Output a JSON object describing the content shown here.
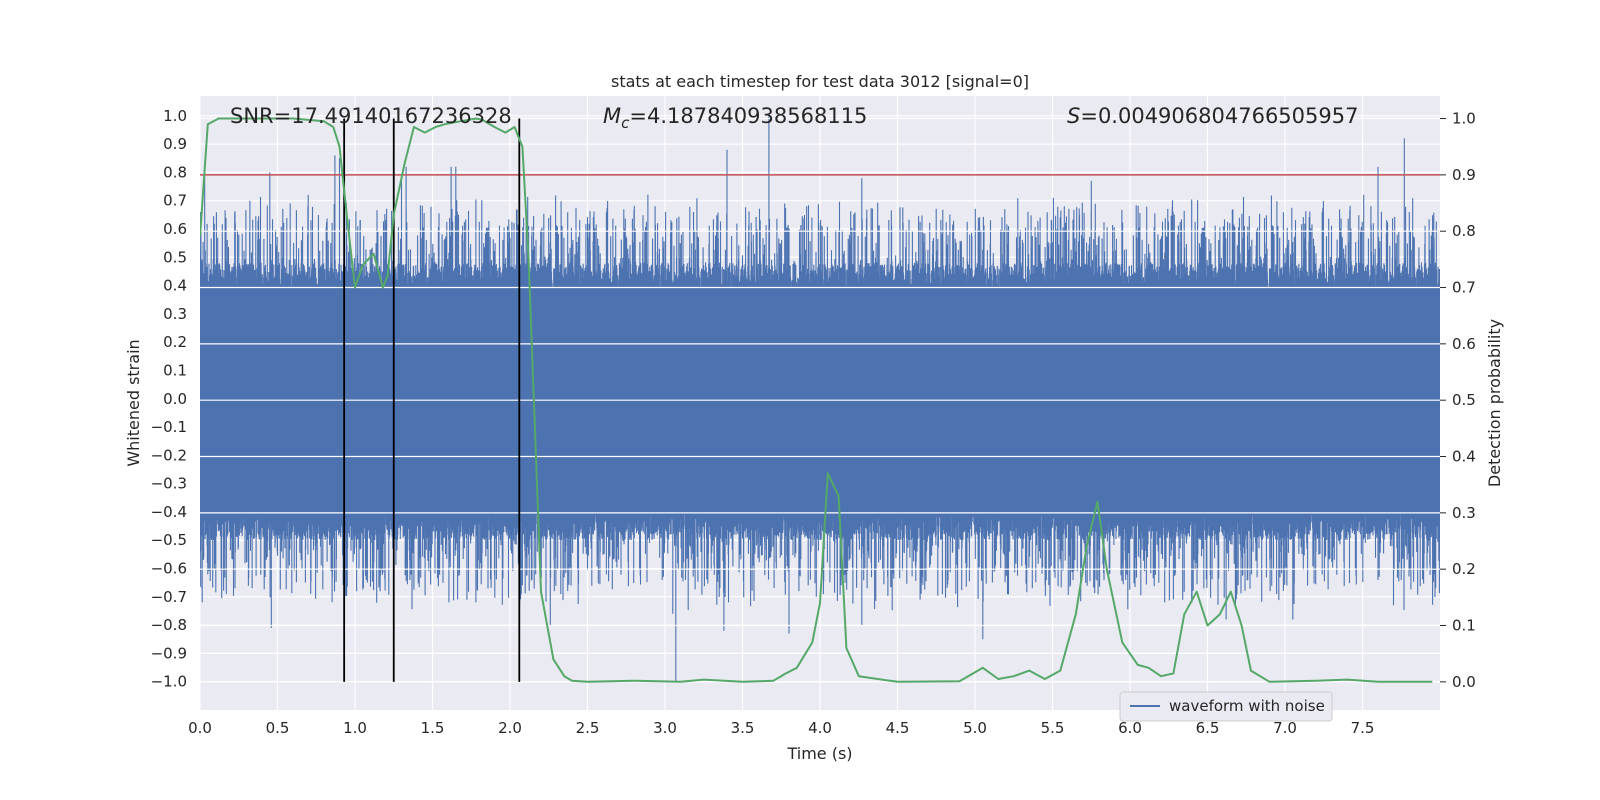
{
  "chart_data": {
    "type": "line",
    "title": "stats at each timestep for test data 3012 [signal=0]",
    "xlabel": "Time (s)",
    "ylabel": "Whitened strain",
    "ylabel_right": "Detection probability",
    "xlim": [
      0,
      8.0
    ],
    "ylim": [
      -1.1,
      1.07
    ],
    "ylim_right": [
      -0.05,
      1.04
    ],
    "x_ticks": [
      "0.0",
      "0.5",
      "1.0",
      "1.5",
      "2.0",
      "2.5",
      "3.0",
      "3.5",
      "4.0",
      "4.5",
      "5.0",
      "5.5",
      "6.0",
      "6.5",
      "7.0",
      "7.5"
    ],
    "y_ticks": [
      "1.0",
      "0.9",
      "0.8",
      "0.7",
      "0.6",
      "0.5",
      "0.4",
      "0.3",
      "0.2",
      "0.1",
      "0.0",
      "-0.1",
      "-0.2",
      "-0.3",
      "-0.4",
      "-0.5",
      "-0.6",
      "-0.7",
      "-0.8",
      "-0.9",
      "-1.0"
    ],
    "y_ticks_right": [
      "1.0",
      "0.9",
      "0.8",
      "0.7",
      "0.6",
      "0.5",
      "0.4",
      "0.3",
      "0.2",
      "0.1",
      "0.0"
    ],
    "annotations": {
      "snr": "SNR=17.49140167236328",
      "mc_symbol": "M",
      "mc_sub": "c",
      "mc_value": "=4.187840938568115",
      "s_symbol": "S",
      "s_value": "=0.004906804766505957"
    },
    "threshold": 0.9,
    "vlines": [
      0.93,
      1.25,
      2.06
    ],
    "grid": true,
    "legend_position": "lower-right",
    "series": [
      {
        "name": "waveform with noise",
        "color": "#4c72b0",
        "kind": "noise",
        "band_top": 0.38,
        "band_bottom": -0.4,
        "spikes": [
          {
            "x": 0.03,
            "v": 0.8
          },
          {
            "x": 0.05,
            "v": -0.62
          },
          {
            "x": 0.17,
            "v": -0.69
          },
          {
            "x": 0.45,
            "v": 0.8
          },
          {
            "x": 0.46,
            "v": -0.81
          },
          {
            "x": 0.42,
            "v": -0.63
          },
          {
            "x": 0.87,
            "v": 0.86
          },
          {
            "x": 0.9,
            "v": 0.85
          },
          {
            "x": 1.1,
            "v": -0.66
          },
          {
            "x": 1.3,
            "v": 0.77
          },
          {
            "x": 1.33,
            "v": 0.82
          },
          {
            "x": 1.62,
            "v": 0.82
          },
          {
            "x": 1.65,
            "v": 0.82
          },
          {
            "x": 2.12,
            "v": -0.55
          },
          {
            "x": 2.26,
            "v": -0.8
          },
          {
            "x": 3.07,
            "v": -1.0
          },
          {
            "x": 3.05,
            "v": -0.76
          },
          {
            "x": 3.4,
            "v": 0.88
          },
          {
            "x": 3.38,
            "v": -0.82
          },
          {
            "x": 3.67,
            "v": 1.0
          },
          {
            "x": 3.8,
            "v": -0.83
          },
          {
            "x": 4.27,
            "v": 0.78
          },
          {
            "x": 4.27,
            "v": -0.8
          },
          {
            "x": 5.05,
            "v": -0.85
          },
          {
            "x": 5.75,
            "v": 0.77
          },
          {
            "x": 6.4,
            "v": -0.72
          },
          {
            "x": 6.62,
            "v": -0.78
          },
          {
            "x": 7.05,
            "v": -0.78
          },
          {
            "x": 7.6,
            "v": 0.82
          },
          {
            "x": 7.77,
            "v": 0.92
          },
          {
            "x": 7.7,
            "v": -0.73
          }
        ]
      },
      {
        "name": "",
        "color": "#55a868",
        "axis": "right",
        "points": [
          [
            0.0,
            0.79
          ],
          [
            0.05,
            0.99
          ],
          [
            0.12,
            1.0
          ],
          [
            0.3,
            1.0
          ],
          [
            0.6,
            1.0
          ],
          [
            0.8,
            0.995
          ],
          [
            0.86,
            0.985
          ],
          [
            0.9,
            0.95
          ],
          [
            0.95,
            0.82
          ],
          [
            1.0,
            0.7
          ],
          [
            1.05,
            0.74
          ],
          [
            1.12,
            0.76
          ],
          [
            1.18,
            0.7
          ],
          [
            1.21,
            0.72
          ],
          [
            1.25,
            0.83
          ],
          [
            1.32,
            0.92
          ],
          [
            1.38,
            0.985
          ],
          [
            1.45,
            0.975
          ],
          [
            1.52,
            0.985
          ],
          [
            1.58,
            0.99
          ],
          [
            1.68,
            0.995
          ],
          [
            1.78,
            1.0
          ],
          [
            1.82,
            0.998
          ],
          [
            1.9,
            0.985
          ],
          [
            1.97,
            0.975
          ],
          [
            2.03,
            0.985
          ],
          [
            2.08,
            0.95
          ],
          [
            2.12,
            0.75
          ],
          [
            2.2,
            0.16
          ],
          [
            2.28,
            0.04
          ],
          [
            2.35,
            0.01
          ],
          [
            2.4,
            0.002
          ],
          [
            2.5,
            0.0
          ],
          [
            2.8,
            0.002
          ],
          [
            3.1,
            0.0
          ],
          [
            3.25,
            0.004
          ],
          [
            3.5,
            0.0
          ],
          [
            3.7,
            0.002
          ],
          [
            3.78,
            0.015
          ],
          [
            3.85,
            0.025
          ],
          [
            3.95,
            0.07
          ],
          [
            4.0,
            0.14
          ],
          [
            4.05,
            0.37
          ],
          [
            4.12,
            0.33
          ],
          [
            4.17,
            0.06
          ],
          [
            4.25,
            0.01
          ],
          [
            4.5,
            0.0
          ],
          [
            4.9,
            0.001
          ],
          [
            5.05,
            0.025
          ],
          [
            5.15,
            0.005
          ],
          [
            5.25,
            0.01
          ],
          [
            5.35,
            0.02
          ],
          [
            5.45,
            0.005
          ],
          [
            5.55,
            0.02
          ],
          [
            5.65,
            0.12
          ],
          [
            5.72,
            0.24
          ],
          [
            5.79,
            0.32
          ],
          [
            5.85,
            0.2
          ],
          [
            5.95,
            0.07
          ],
          [
            6.05,
            0.03
          ],
          [
            6.12,
            0.025
          ],
          [
            6.2,
            0.01
          ],
          [
            6.28,
            0.015
          ],
          [
            6.35,
            0.12
          ],
          [
            6.43,
            0.16
          ],
          [
            6.5,
            0.1
          ],
          [
            6.58,
            0.12
          ],
          [
            6.65,
            0.16
          ],
          [
            6.72,
            0.1
          ],
          [
            6.78,
            0.02
          ],
          [
            6.9,
            0.0
          ],
          [
            7.2,
            0.002
          ],
          [
            7.4,
            0.004
          ],
          [
            7.6,
            0.0
          ],
          [
            7.95,
            0.0
          ]
        ]
      }
    ]
  },
  "legend": {
    "label": "waveform with noise"
  }
}
